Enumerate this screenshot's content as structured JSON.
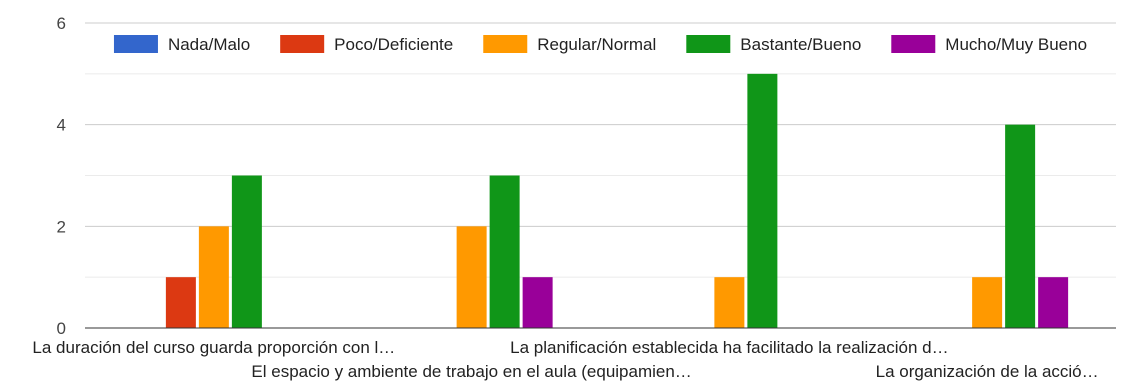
{
  "chart_data": {
    "type": "bar",
    "title": "",
    "xlabel": "",
    "ylabel": "",
    "ylim": [
      0,
      6
    ],
    "yticks": [
      0,
      2,
      4,
      6
    ],
    "grid": true,
    "legend_position": "top",
    "categories": [
      "La duración del curso guarda proporción con l…",
      "El espacio y ambiente de trabajo en el aula (equipamien…",
      "La planificación establecida ha facilitado la realización d…",
      "La organización de la acció…"
    ],
    "series": [
      {
        "name": "Nada/Malo",
        "color": "#3366cc",
        "values": [
          0,
          0,
          0,
          0
        ]
      },
      {
        "name": "Poco/Deficiente",
        "color": "#dc3912",
        "values": [
          1,
          0,
          0,
          0
        ]
      },
      {
        "name": "Regular/Normal",
        "color": "#ff9900",
        "values": [
          2,
          2,
          1,
          1
        ]
      },
      {
        "name": "Bastante/Bueno",
        "color": "#109618",
        "values": [
          3,
          3,
          5,
          4
        ]
      },
      {
        "name": "Mucho/Muy Bueno",
        "color": "#990099",
        "values": [
          0,
          1,
          0,
          1
        ]
      }
    ]
  }
}
